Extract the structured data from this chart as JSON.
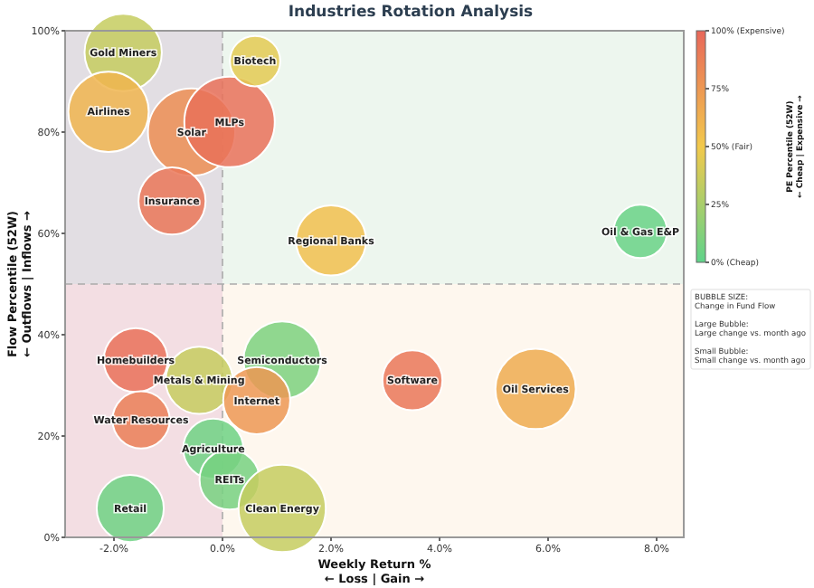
{
  "chart_data": {
    "type": "bubble",
    "title": "Industries Rotation Analysis",
    "xlabel": "Weekly Return %\n← Loss | Gain →",
    "ylabel": "Flow Percentile (52W)\n← Outflows | Inflows →",
    "clabel": "PE Percentile (52W)\n← Cheap | Expensive →",
    "xlim": [
      -2.9,
      8.5
    ],
    "ylim": [
      0,
      100
    ],
    "xticks": [
      {
        "value": -2,
        "label": "-2.0%"
      },
      {
        "value": 0,
        "label": "0.0%"
      },
      {
        "value": 2,
        "label": "2.0%"
      },
      {
        "value": 4,
        "label": "4.0%"
      },
      {
        "value": 6,
        "label": "6.0%"
      },
      {
        "value": 8,
        "label": "8.0%"
      }
    ],
    "yticks": [
      {
        "value": 0,
        "label": "0%"
      },
      {
        "value": 20,
        "label": "20%"
      },
      {
        "value": 40,
        "label": "40%"
      },
      {
        "value": 60,
        "label": "60%"
      },
      {
        "value": 80,
        "label": "80%"
      },
      {
        "value": 100,
        "label": "100%"
      }
    ],
    "clim": [
      0,
      100
    ],
    "cticks": [
      {
        "value": 0,
        "label": "0% (Cheap)"
      },
      {
        "value": 25,
        "label": "25%"
      },
      {
        "value": 50,
        "label": "50% (Fair)"
      },
      {
        "value": 75,
        "label": "75%"
      },
      {
        "value": 100,
        "label": "100% (Expensive)"
      }
    ],
    "ref_lines": [
      {
        "axis": "x",
        "value": 0,
        "color": "#aaaaaa",
        "line_style": "dashed"
      },
      {
        "axis": "y",
        "value": 50,
        "color": "#aaaaaa",
        "line_style": "dashed"
      }
    ],
    "annotations": [
      "BUBBLE SIZE:\nChange in Fund Flow\n\nLarge Bubble:\nLarge change vs. month ago\n\nSmall Bubble:\nSmall change vs. month ago"
    ],
    "bands": [
      {
        "axis": "y",
        "from": 50,
        "to": 100,
        "color": "#edf6ee"
      },
      {
        "axis": "y",
        "from": 0,
        "to": 50,
        "color": "#fef7ee"
      },
      {
        "axis": "x",
        "from": -2.9,
        "to": 0,
        "color": "#f4e6f4"
      }
    ],
    "grid": false,
    "series": [
      {
        "name": "Gold Miners",
        "x": [
          -1.83
        ],
        "values": [
          95.7
        ],
        "sizes": [
          0.73
        ],
        "cvalues": [
          35
        ]
      },
      {
        "name": "Airlines",
        "x": [
          -2.1
        ],
        "values": [
          84
        ],
        "sizes": [
          0.79
        ],
        "cvalues": [
          60
        ]
      },
      {
        "name": "Solar",
        "x": [
          -0.57
        ],
        "values": [
          80
        ],
        "sizes": [
          0.93
        ],
        "cvalues": [
          80
        ]
      },
      {
        "name": "MLPs",
        "x": [
          0.13
        ],
        "values": [
          82
        ],
        "sizes": [
          1
        ],
        "cvalues": [
          95
        ]
      },
      {
        "name": "Biotech",
        "x": [
          0.6
        ],
        "values": [
          94
        ],
        "sizes": [
          0.31
        ],
        "cvalues": [
          45
        ]
      },
      {
        "name": "Insurance",
        "x": [
          -0.93
        ],
        "values": [
          66.4
        ],
        "sizes": [
          0.55
        ],
        "cvalues": [
          92
        ]
      },
      {
        "name": "Regional Banks",
        "x": [
          2.0
        ],
        "values": [
          58.6
        ],
        "sizes": [
          0.6
        ],
        "cvalues": [
          55
        ]
      },
      {
        "name": "Oil & Gas E&P",
        "x": [
          7.7
        ],
        "values": [
          60.4
        ],
        "sizes": [
          0.35
        ],
        "cvalues": [
          3
        ]
      },
      {
        "name": "Homebuilders",
        "x": [
          -1.6
        ],
        "values": [
          35
        ],
        "sizes": [
          0.5
        ],
        "cvalues": [
          95
        ]
      },
      {
        "name": "Semiconductors",
        "x": [
          1.1
        ],
        "values": [
          35
        ],
        "sizes": [
          0.73
        ],
        "cvalues": [
          10
        ]
      },
      {
        "name": "Metals & Mining",
        "x": [
          -0.43
        ],
        "values": [
          31
        ],
        "sizes": [
          0.55
        ],
        "cvalues": [
          35
        ]
      },
      {
        "name": "Internet",
        "x": [
          0.63
        ],
        "values": [
          27
        ],
        "sizes": [
          0.55
        ],
        "cvalues": [
          75
        ]
      },
      {
        "name": "Water Resources",
        "x": [
          -1.5
        ],
        "values": [
          23.2
        ],
        "sizes": [
          0.4
        ],
        "cvalues": [
          88
        ]
      },
      {
        "name": "Agriculture",
        "x": [
          -0.17
        ],
        "values": [
          17.5
        ],
        "sizes": [
          0.44
        ],
        "cvalues": [
          5
        ]
      },
      {
        "name": "REITs",
        "x": [
          0.13
        ],
        "values": [
          11.4
        ],
        "sizes": [
          0.44
        ],
        "cvalues": [
          8
        ]
      },
      {
        "name": "Clean Energy",
        "x": [
          1.1
        ],
        "values": [
          5.7
        ],
        "sizes": [
          0.93
        ],
        "cvalues": [
          35
        ]
      },
      {
        "name": "Retail",
        "x": [
          -1.7
        ],
        "values": [
          5.7
        ],
        "sizes": [
          0.55
        ],
        "cvalues": [
          5
        ]
      },
      {
        "name": "Software",
        "x": [
          3.5
        ],
        "values": [
          31
        ],
        "sizes": [
          0.44
        ],
        "cvalues": [
          92
        ]
      },
      {
        "name": "Oil Services",
        "x": [
          5.77
        ],
        "values": [
          29.3
        ],
        "sizes": [
          0.79
        ],
        "cvalues": [
          65
        ]
      }
    ]
  }
}
